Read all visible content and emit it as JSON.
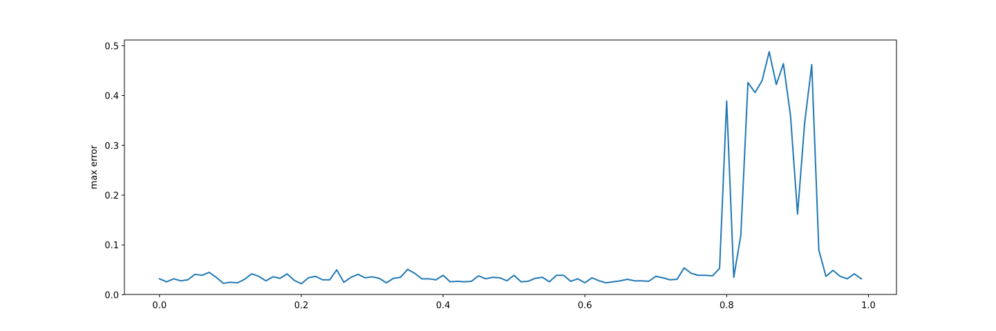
{
  "chart_data": {
    "type": "line",
    "title": "",
    "xlabel": "",
    "ylabel": "max error",
    "xlim": [
      -0.0495,
      1.0395
    ],
    "ylim": [
      0.0006,
      0.5115
    ],
    "grid": false,
    "legend": "none",
    "xticks": [
      0.0,
      0.2,
      0.4,
      0.6,
      0.8,
      1.0
    ],
    "xtick_labels": [
      "0.0",
      "0.2",
      "0.4",
      "0.6",
      "0.8",
      "1.0"
    ],
    "yticks": [
      0.0,
      0.1,
      0.2,
      0.3,
      0.4,
      0.5
    ],
    "ytick_labels": [
      "0.0",
      "0.1",
      "0.2",
      "0.3",
      "0.4",
      "0.5"
    ],
    "series": [
      {
        "name": "max error",
        "color": "#1f77b4",
        "x": [
          0.0,
          0.01,
          0.02,
          0.03,
          0.04,
          0.05,
          0.06,
          0.07,
          0.08,
          0.09,
          0.1,
          0.11,
          0.12,
          0.13,
          0.14,
          0.15,
          0.16,
          0.17,
          0.18,
          0.19,
          0.2,
          0.21,
          0.22,
          0.23,
          0.24,
          0.25,
          0.26,
          0.27,
          0.28,
          0.29,
          0.3,
          0.31,
          0.32,
          0.33,
          0.34,
          0.35,
          0.36,
          0.37,
          0.38,
          0.39,
          0.4,
          0.41,
          0.42,
          0.43,
          0.44,
          0.45,
          0.46,
          0.47,
          0.48,
          0.49,
          0.5,
          0.51,
          0.52,
          0.53,
          0.54,
          0.55,
          0.56,
          0.57,
          0.58,
          0.59,
          0.6,
          0.61,
          0.62,
          0.63,
          0.64,
          0.65,
          0.66,
          0.67,
          0.68,
          0.69,
          0.7,
          0.71,
          0.72,
          0.73,
          0.74,
          0.75,
          0.76,
          0.77,
          0.78,
          0.79,
          0.8,
          0.81,
          0.82,
          0.83,
          0.84,
          0.85,
          0.86,
          0.87,
          0.88,
          0.89,
          0.9,
          0.91,
          0.92,
          0.93,
          0.94,
          0.95,
          0.96,
          0.97,
          0.98,
          0.99
        ],
        "y": [
          0.032,
          0.026,
          0.032,
          0.028,
          0.03,
          0.041,
          0.039,
          0.045,
          0.035,
          0.023,
          0.025,
          0.024,
          0.031,
          0.042,
          0.037,
          0.028,
          0.036,
          0.033,
          0.042,
          0.029,
          0.022,
          0.034,
          0.037,
          0.03,
          0.03,
          0.05,
          0.025,
          0.035,
          0.041,
          0.034,
          0.036,
          0.033,
          0.024,
          0.033,
          0.035,
          0.051,
          0.043,
          0.032,
          0.032,
          0.03,
          0.039,
          0.026,
          0.027,
          0.026,
          0.027,
          0.038,
          0.032,
          0.035,
          0.034,
          0.028,
          0.039,
          0.026,
          0.027,
          0.033,
          0.035,
          0.026,
          0.039,
          0.039,
          0.027,
          0.032,
          0.024,
          0.034,
          0.028,
          0.024,
          0.026,
          0.028,
          0.031,
          0.028,
          0.028,
          0.027,
          0.037,
          0.034,
          0.03,
          0.031,
          0.054,
          0.043,
          0.039,
          0.039,
          0.038,
          0.053,
          0.389,
          0.035,
          0.12,
          0.426,
          0.406,
          0.43,
          0.488,
          0.422,
          0.464,
          0.36,
          0.162,
          0.345,
          0.462,
          0.09,
          0.037,
          0.049,
          0.037,
          0.032,
          0.042,
          0.032
        ]
      }
    ]
  }
}
